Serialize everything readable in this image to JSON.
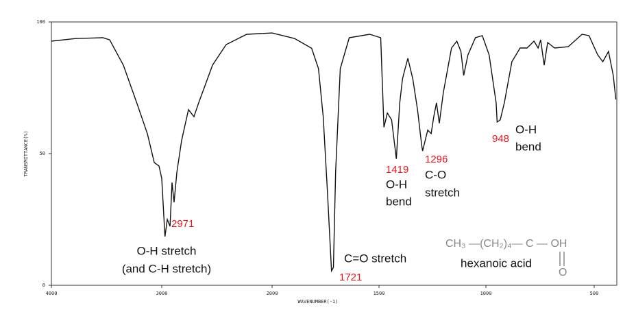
{
  "chart_data": {
    "type": "line",
    "x_label": "WAVENUMBER(-1)",
    "y_label": "TRANSMITTANCE(%)",
    "xlim": [
      4000,
      400
    ],
    "ylim": [
      0,
      100
    ],
    "xticks": [
      4000,
      3000,
      2000,
      1500,
      1000,
      500
    ],
    "yticks": [
      0,
      50,
      100
    ],
    "color": "#111",
    "x": [
      4000,
      3780,
      3534,
      3472,
      3348,
      3224,
      3130,
      3068,
      3025,
      3000,
      2971,
      2950,
      2925,
      2907,
      2888,
      2863,
      2820,
      2758,
      2708,
      2665,
      2540,
      2416,
      2230,
      2000,
      1895,
      1815,
      1783,
      1761,
      1741,
      1722,
      1713,
      1703,
      1681,
      1639,
      1544,
      1492,
      1477,
      1461,
      1441,
      1419,
      1403,
      1390,
      1378,
      1365,
      1342,
      1320,
      1301,
      1296,
      1272,
      1256,
      1244,
      1231,
      1218,
      1199,
      1161,
      1136,
      1117,
      1104,
      1084,
      1049,
      1017,
      985,
      953,
      948,
      934,
      915,
      880,
      842,
      810,
      778,
      759,
      747,
      731,
      715,
      683,
      620,
      556,
      524,
      484,
      460,
      434,
      412,
      400
    ],
    "values": [
      92.7,
      93.7,
      94,
      93.2,
      83.6,
      69,
      57.5,
      46.6,
      45.3,
      40.6,
      18.5,
      25,
      22.4,
      39,
      31.5,
      43,
      55,
      66.7,
      64,
      69.3,
      83.6,
      91.4,
      95.3,
      95.8,
      93.7,
      90,
      82.3,
      64,
      35.4,
      5.5,
      6.8,
      43,
      82.3,
      94,
      95.3,
      94,
      60,
      65.4,
      62.8,
      48,
      69.3,
      78.4,
      82.3,
      86.2,
      78.4,
      66.7,
      53.6,
      51,
      58.9,
      57.6,
      64,
      69.3,
      61.5,
      73.2,
      90.1,
      92.7,
      88.8,
      79.7,
      87.5,
      94,
      94.8,
      87.5,
      69.3,
      62,
      62.8,
      69.3,
      84.9,
      90.1,
      90.1,
      92.7,
      90.1,
      93.2,
      83.6,
      92.2,
      90.1,
      90.6,
      95.3,
      94.8,
      87.5,
      84.9,
      88.8,
      79.7,
      70.6
    ],
    "annotations": [
      {
        "text": "2971",
        "color": "#e8141c"
      },
      {
        "text": "O-H stretch",
        "color": "#111"
      },
      {
        "text": "(and C-H stretch)",
        "color": "#111"
      },
      {
        "text": "C=O stretch",
        "color": "#111"
      },
      {
        "text": "1721",
        "color": "#e8141c"
      },
      {
        "text": "1419",
        "color": "#e8141c"
      },
      {
        "text": "O-H",
        "color": "#111"
      },
      {
        "text": "bend",
        "color": "#111"
      },
      {
        "text": "1296",
        "color": "#e8141c"
      },
      {
        "text": "C-O",
        "color": "#111"
      },
      {
        "text": "stretch",
        "color": "#111"
      },
      {
        "text": "948",
        "color": "#e8141c"
      },
      {
        "text": "O-H",
        "color": "#111"
      },
      {
        "text": "bend",
        "color": "#111"
      },
      {
        "text": "CH₃ —(CH₂)₄— C — OH",
        "color": "#888"
      },
      {
        "text": "hexanoic acid",
        "color": "#111"
      },
      {
        "text": "O",
        "color": "#888"
      }
    ]
  }
}
